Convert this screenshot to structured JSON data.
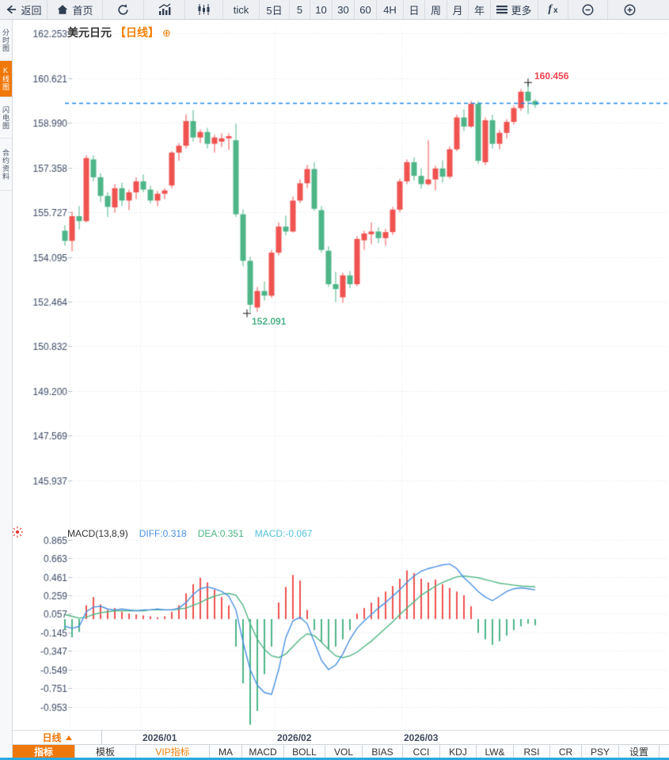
{
  "toolbar": {
    "items": [
      {
        "label": "返回",
        "icon": "back-arrow"
      },
      {
        "label": "首页",
        "icon": "home"
      },
      {
        "label": "",
        "icon": "refresh"
      },
      {
        "label": "",
        "icon": "bar-chart"
      },
      {
        "label": "",
        "icon": "candlestick"
      },
      {
        "label": "tick"
      },
      {
        "label": "5日"
      },
      {
        "label": "5"
      },
      {
        "label": "10"
      },
      {
        "label": "30"
      },
      {
        "label": "60"
      },
      {
        "label": "4H"
      },
      {
        "label": "日"
      },
      {
        "label": "周"
      },
      {
        "label": "月"
      },
      {
        "label": "年"
      },
      {
        "label": "更多",
        "icon": "menu"
      },
      {
        "label": "fx",
        "icon": "fx"
      },
      {
        "label": "",
        "icon": "zoom-out"
      },
      {
        "label": "",
        "icon": "zoom-in"
      }
    ]
  },
  "sidebar": {
    "items": [
      {
        "label": "分时图",
        "selected": false
      },
      {
        "label": "K线图",
        "selected": true
      },
      {
        "label": "闪电图",
        "selected": false
      },
      {
        "label": "合约资料",
        "selected": false
      }
    ]
  },
  "header": {
    "symbol": "美元日元",
    "period_tag": "【日线】",
    "add_icon": "⊕"
  },
  "indicator_header": {
    "title": "MACD(13,8,9)",
    "diff": "DIFF:0.318",
    "dea": "DEA:0.351",
    "macd": "MACD:-0.067"
  },
  "bottom": {
    "period_selector": "日线",
    "tabs": [
      {
        "label": "指标",
        "state": "selected"
      },
      {
        "label": "模板",
        "state": "normal"
      },
      {
        "label": "VIP指标",
        "state": "vip"
      },
      {
        "label": "MA",
        "state": "normal"
      },
      {
        "label": "MACD",
        "state": "normal"
      },
      {
        "label": "BOLL",
        "state": "normal"
      },
      {
        "label": "VOL",
        "state": "normal"
      },
      {
        "label": "BIAS",
        "state": "normal"
      },
      {
        "label": "CCI",
        "state": "normal"
      },
      {
        "label": "KDJ",
        "state": "normal"
      },
      {
        "label": "LW&",
        "state": "normal"
      },
      {
        "label": "RSI",
        "state": "normal"
      },
      {
        "label": "CR",
        "state": "normal"
      },
      {
        "label": "PSY",
        "state": "normal"
      },
      {
        "label": "设置",
        "state": "normal"
      }
    ]
  },
  "colors": {
    "up": "#ef5350",
    "down": "#4eb588",
    "diff_line": "#4a90e2",
    "dea_line": "#4db581",
    "macd_text": "#53c0d9",
    "price_line": "#1f87e8",
    "accent": "#f0780a",
    "axis_text": "#3d4b66",
    "grid": "#e2e6ed",
    "cross": "#1a1a1a"
  },
  "chart_data": {
    "type": "candlestick",
    "title": "美元日元 日线 K线图 with MACD",
    "main": {
      "ylabel": "price",
      "yticks": [
        "162.253",
        "160.621",
        "158.990",
        "157.358",
        "155.727",
        "154.095",
        "152.464",
        "150.832",
        "149.200",
        "147.569",
        "145.937"
      ],
      "high_marker": {
        "index": 65,
        "price": 160.456,
        "label": "160.456"
      },
      "low_marker": {
        "index": 26,
        "price": 152.091,
        "label": "152.091"
      },
      "last_price_line": 159.71,
      "candles": [
        [
          155.05,
          155.25,
          154.5,
          154.68
        ],
        [
          154.68,
          155.75,
          154.3,
          155.58
        ],
        [
          155.58,
          155.95,
          155.1,
          155.4
        ],
        [
          155.4,
          157.8,
          155.35,
          157.7
        ],
        [
          157.65,
          157.8,
          156.85,
          157.0
        ],
        [
          157.0,
          157.15,
          156.1,
          156.32
        ],
        [
          156.32,
          156.45,
          155.55,
          155.92
        ],
        [
          155.9,
          156.75,
          155.7,
          156.6
        ],
        [
          156.6,
          156.8,
          155.95,
          156.15
        ],
        [
          156.15,
          156.55,
          155.8,
          156.45
        ],
        [
          156.45,
          157.0,
          156.2,
          156.85
        ],
        [
          156.85,
          157.1,
          156.45,
          156.55
        ],
        [
          156.55,
          156.7,
          156.05,
          156.15
        ],
        [
          156.15,
          156.5,
          155.95,
          156.4
        ],
        [
          156.4,
          156.6,
          156.2,
          156.52
        ],
        [
          156.7,
          157.95,
          156.6,
          157.9
        ],
        [
          157.9,
          158.25,
          157.6,
          158.15
        ],
        [
          158.15,
          159.3,
          158.05,
          159.05
        ],
        [
          159.05,
          159.45,
          158.3,
          158.45
        ],
        [
          158.45,
          158.75,
          158.25,
          158.65
        ],
        [
          158.65,
          158.8,
          158.05,
          158.22
        ],
        [
          158.22,
          158.55,
          157.9,
          158.45
        ],
        [
          158.3,
          158.6,
          158.1,
          158.42
        ],
        [
          158.42,
          158.6,
          158.0,
          158.5
        ],
        [
          158.35,
          158.95,
          155.55,
          155.65
        ],
        [
          155.65,
          155.82,
          153.75,
          153.95
        ],
        [
          153.95,
          154.1,
          152.091,
          152.35
        ],
        [
          152.25,
          153.0,
          152.1,
          152.85
        ],
        [
          152.85,
          153.2,
          152.5,
          152.68
        ],
        [
          152.68,
          154.35,
          152.6,
          154.25
        ],
        [
          154.25,
          155.35,
          154.15,
          155.2
        ],
        [
          155.2,
          155.6,
          154.88,
          155.02
        ],
        [
          155.02,
          156.3,
          154.98,
          156.15
        ],
        [
          156.15,
          156.92,
          156.05,
          156.78
        ],
        [
          156.78,
          157.45,
          156.6,
          157.3
        ],
        [
          157.3,
          157.55,
          155.78,
          155.85
        ],
        [
          155.8,
          155.95,
          154.25,
          154.35
        ],
        [
          154.32,
          154.48,
          153.0,
          153.1
        ],
        [
          153.1,
          153.55,
          152.45,
          152.92
        ],
        [
          152.62,
          153.52,
          152.42,
          153.42
        ],
        [
          153.42,
          153.58,
          152.95,
          153.1
        ],
        [
          153.1,
          154.85,
          153.02,
          154.75
        ],
        [
          154.7,
          155.05,
          154.35,
          154.95
        ],
        [
          154.92,
          155.35,
          154.55,
          155.02
        ],
        [
          155.02,
          155.18,
          154.6,
          154.78
        ],
        [
          154.78,
          155.12,
          154.5,
          155.0
        ],
        [
          155.0,
          155.92,
          154.9,
          155.82
        ],
        [
          155.82,
          156.95,
          155.72,
          156.85
        ],
        [
          156.85,
          157.65,
          156.75,
          157.55
        ],
        [
          157.55,
          157.72,
          156.88,
          157.05
        ],
        [
          157.05,
          157.32,
          156.58,
          156.75
        ],
        [
          156.75,
          158.35,
          156.7,
          156.92
        ],
        [
          156.92,
          157.42,
          156.52,
          157.32
        ],
        [
          157.32,
          157.62,
          156.8,
          157.02
        ],
        [
          157.02,
          158.12,
          156.95,
          158.02
        ],
        [
          158.02,
          159.28,
          157.95,
          159.18
        ],
        [
          159.18,
          159.48,
          158.68,
          158.85
        ],
        [
          158.85,
          159.78,
          158.8,
          159.68
        ],
        [
          159.68,
          159.78,
          157.48,
          157.6
        ],
        [
          157.55,
          159.18,
          157.45,
          159.08
        ],
        [
          159.08,
          159.28,
          158.05,
          158.22
        ],
        [
          158.22,
          158.72,
          158.02,
          158.62
        ],
        [
          158.62,
          159.12,
          158.42,
          159.02
        ],
        [
          159.02,
          159.62,
          158.92,
          159.52
        ],
        [
          159.52,
          160.22,
          159.42,
          160.12
        ],
        [
          160.12,
          160.456,
          159.3,
          159.78
        ],
        [
          159.78,
          159.85,
          159.52,
          159.64
        ]
      ]
    },
    "macd": {
      "params": "13,8,9",
      "diff_value": 0.318,
      "dea_value": 0.351,
      "macd_value": -0.067,
      "yticks": [
        "0.865",
        "0.663",
        "0.461",
        "0.259",
        "0.057",
        "-0.145",
        "-0.347",
        "-0.549",
        "-0.751",
        "-0.953"
      ],
      "hist": [
        -0.12,
        -0.2,
        -0.14,
        0.15,
        0.24,
        0.16,
        0.1,
        0.12,
        0.08,
        0.06,
        0.05,
        0.04,
        0.03,
        0.02,
        0.03,
        0.08,
        0.15,
        0.28,
        0.38,
        0.45,
        0.4,
        0.32,
        0.24,
        0.15,
        -0.3,
        -0.7,
        -1.15,
        -1.0,
        -0.6,
        -0.3,
        0.18,
        0.35,
        0.48,
        0.42,
        0.1,
        -0.12,
        -0.25,
        -0.33,
        -0.3,
        -0.22,
        -0.12,
        0.06,
        0.12,
        0.18,
        0.24,
        0.3,
        0.36,
        0.44,
        0.53,
        0.5,
        0.44,
        0.4,
        0.43,
        0.38,
        0.34,
        0.3,
        0.26,
        0.14,
        -0.15,
        -0.22,
        -0.28,
        -0.24,
        -0.18,
        -0.12,
        -0.08,
        -0.05,
        -0.067
      ],
      "diff": [
        -0.08,
        -0.1,
        -0.08,
        0.08,
        0.13,
        0.14,
        0.11,
        0.1,
        0.11,
        0.1,
        0.09,
        0.1,
        0.1,
        0.11,
        0.1,
        0.1,
        0.12,
        0.18,
        0.27,
        0.33,
        0.35,
        0.33,
        0.3,
        0.25,
        0.1,
        -0.25,
        -0.55,
        -0.72,
        -0.8,
        -0.82,
        -0.55,
        -0.2,
        -0.02,
        0.02,
        -0.05,
        -0.25,
        -0.45,
        -0.55,
        -0.5,
        -0.38,
        -0.22,
        -0.1,
        -0.02,
        0.05,
        0.12,
        0.18,
        0.25,
        0.32,
        0.4,
        0.47,
        0.52,
        0.55,
        0.57,
        0.59,
        0.6,
        0.55,
        0.45,
        0.38,
        0.3,
        0.24,
        0.2,
        0.25,
        0.3,
        0.33,
        0.34,
        0.33,
        0.318
      ],
      "dea": [
        0.05,
        0.03,
        0.01,
        0.02,
        0.05,
        0.07,
        0.08,
        0.09,
        0.09,
        0.09,
        0.09,
        0.09,
        0.1,
        0.1,
        0.1,
        0.1,
        0.11,
        0.12,
        0.15,
        0.18,
        0.22,
        0.25,
        0.27,
        0.28,
        0.26,
        0.15,
        -0.05,
        -0.22,
        -0.33,
        -0.4,
        -0.42,
        -0.38,
        -0.3,
        -0.22,
        -0.16,
        -0.18,
        -0.25,
        -0.33,
        -0.4,
        -0.42,
        -0.4,
        -0.36,
        -0.3,
        -0.24,
        -0.17,
        -0.1,
        -0.03,
        0.05,
        0.12,
        0.19,
        0.26,
        0.31,
        0.36,
        0.4,
        0.43,
        0.46,
        0.47,
        0.46,
        0.45,
        0.43,
        0.41,
        0.39,
        0.38,
        0.37,
        0.36,
        0.355,
        0.351
      ]
    },
    "xticks": [
      {
        "label": "2026/01",
        "x": 177
      },
      {
        "label": "2026/02",
        "x": 347
      },
      {
        "label": "2026/03",
        "x": 507
      }
    ]
  }
}
